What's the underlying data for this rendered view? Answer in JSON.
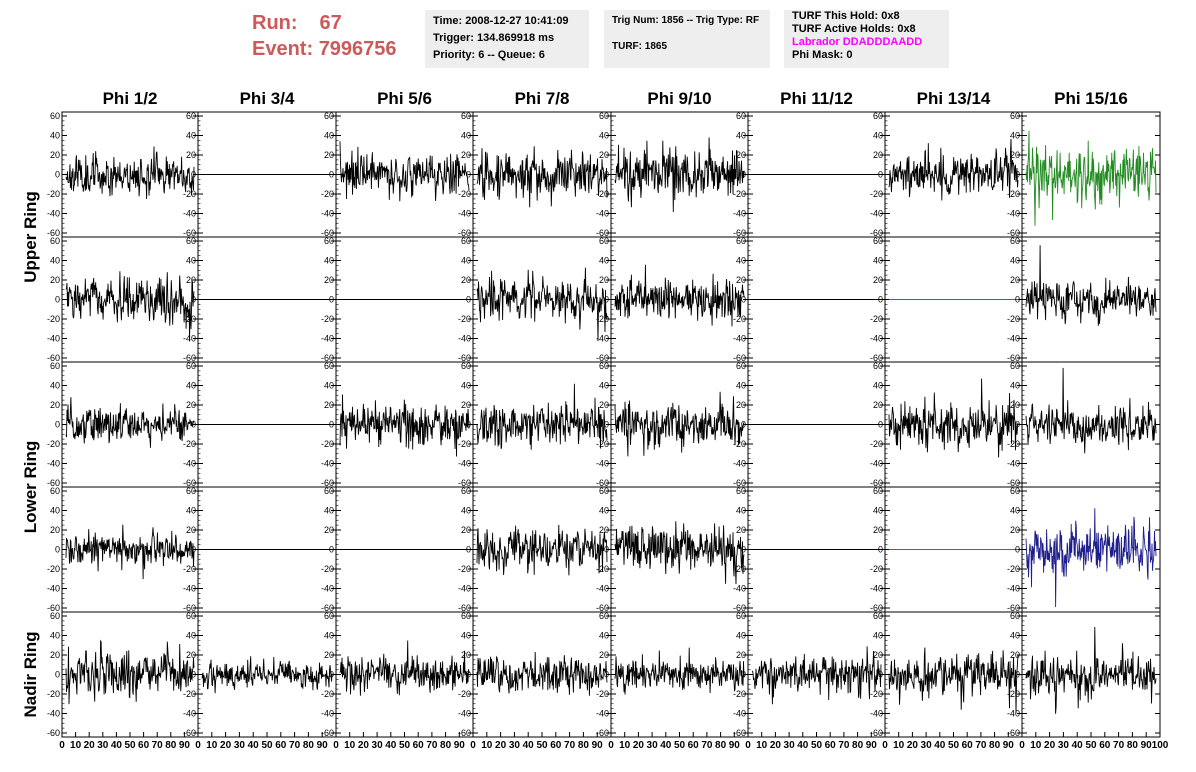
{
  "header": {
    "run_label": "Run:",
    "run_value": "67",
    "event_label": "Event:",
    "event_value": "7996756",
    "time": "Time: 2008-12-27 10:41:09",
    "trigger": "Trigger: 134.869918 ms",
    "priority": "Priority: 6 -- Queue: 6",
    "trig_num": "Trig Num: 1856 -- Trig Type: RF",
    "turf": "TURF: 1865",
    "turf_hold": "TURF This Hold: 0x8",
    "turf_active": "TURF Active Holds: 0x8",
    "labrador": "Labrador DDADDDAADD",
    "phi_mask": "Phi Mask: 0",
    "labrador_color": "#ff00ff",
    "run_color": "#cc5a5a",
    "box_bg": "#eeeeee"
  },
  "chart_data": {
    "type": "line",
    "columns": [
      "Phi 1/2",
      "Phi 3/4",
      "Phi 5/6",
      "Phi 7/8",
      "Phi 9/10",
      "Phi 11/12",
      "Phi 13/14",
      "Phi 15/16"
    ],
    "row_groups": [
      {
        "label": "Upper Ring",
        "rows": [
          0,
          1
        ]
      },
      {
        "label": "Lower Ring",
        "rows": [
          2,
          3
        ]
      },
      {
        "label": "Nadir Ring",
        "rows": [
          4
        ]
      }
    ],
    "ylim": [
      -60,
      60
    ],
    "y_ticks": [
      "60",
      "40",
      "20",
      "0",
      "-20",
      "-40",
      "-60"
    ],
    "xlim": [
      0,
      100
    ],
    "x_tick_labels": [
      "0",
      "10",
      "20",
      "30",
      "40",
      "50",
      "60",
      "70",
      "80",
      "90",
      "100"
    ],
    "x_axis_last_label": "100",
    "cells": [
      [
        {
          "state": "noise",
          "amp": 16,
          "color": "#000000"
        },
        {
          "state": "flat",
          "color": "#000000"
        },
        {
          "state": "noise",
          "amp": 16,
          "color": "#000000"
        },
        {
          "state": "noise",
          "amp": 18,
          "color": "#000000"
        },
        {
          "state": "noise",
          "amp": 20,
          "color": "#000000"
        },
        {
          "state": "flat",
          "color": "#000000"
        },
        {
          "state": "noise",
          "amp": 17,
          "color": "#000000"
        },
        {
          "state": "noise",
          "amp": 22,
          "color": "#228b22"
        }
      ],
      [
        {
          "state": "noise",
          "amp": 18,
          "color": "#000000"
        },
        {
          "state": "flat",
          "color": "#000000"
        },
        {
          "state": "flat",
          "color": "#000000"
        },
        {
          "state": "noise",
          "amp": 17,
          "color": "#000000"
        },
        {
          "state": "noise",
          "amp": 17,
          "color": "#000000"
        },
        {
          "state": "flat",
          "color": "#000000"
        },
        {
          "state": "flat",
          "color": "#cc3333"
        },
        {
          "state": "noise",
          "amp": 16,
          "color": "#000000"
        }
      ],
      [
        {
          "state": "noise",
          "amp": 15,
          "color": "#000000"
        },
        {
          "state": "flat",
          "color": "#000000"
        },
        {
          "state": "noise",
          "amp": 18,
          "color": "#000000"
        },
        {
          "state": "noise",
          "amp": 17,
          "color": "#000000"
        },
        {
          "state": "noise",
          "amp": 18,
          "color": "#000000"
        },
        {
          "state": "flat",
          "color": "#000000"
        },
        {
          "state": "noise",
          "amp": 19,
          "color": "#000000"
        },
        {
          "state": "noise",
          "amp": 16,
          "color": "#000000"
        }
      ],
      [
        {
          "state": "noise",
          "amp": 14,
          "color": "#000000"
        },
        {
          "state": "flat",
          "color": "#000000"
        },
        {
          "state": "flat",
          "color": "#000000"
        },
        {
          "state": "noise",
          "amp": 19,
          "color": "#000000"
        },
        {
          "state": "noise",
          "amp": 20,
          "color": "#000000"
        },
        {
          "state": "flat",
          "color": "#000000"
        },
        {
          "state": "flat",
          "color": "#cc3333"
        },
        {
          "state": "noise",
          "amp": 22,
          "color": "#1e1e8c"
        }
      ],
      [
        {
          "state": "noise",
          "amp": 18,
          "color": "#000000"
        },
        {
          "state": "noise",
          "amp": 11,
          "color": "#000000"
        },
        {
          "state": "noise",
          "amp": 14,
          "color": "#000000"
        },
        {
          "state": "noise",
          "amp": 14,
          "color": "#000000"
        },
        {
          "state": "noise",
          "amp": 13,
          "color": "#000000"
        },
        {
          "state": "noise",
          "amp": 15,
          "color": "#000000"
        },
        {
          "state": "noise",
          "amp": 18,
          "color": "#000000"
        },
        {
          "state": "noise",
          "amp": 16,
          "color": "#000000"
        }
      ]
    ]
  }
}
